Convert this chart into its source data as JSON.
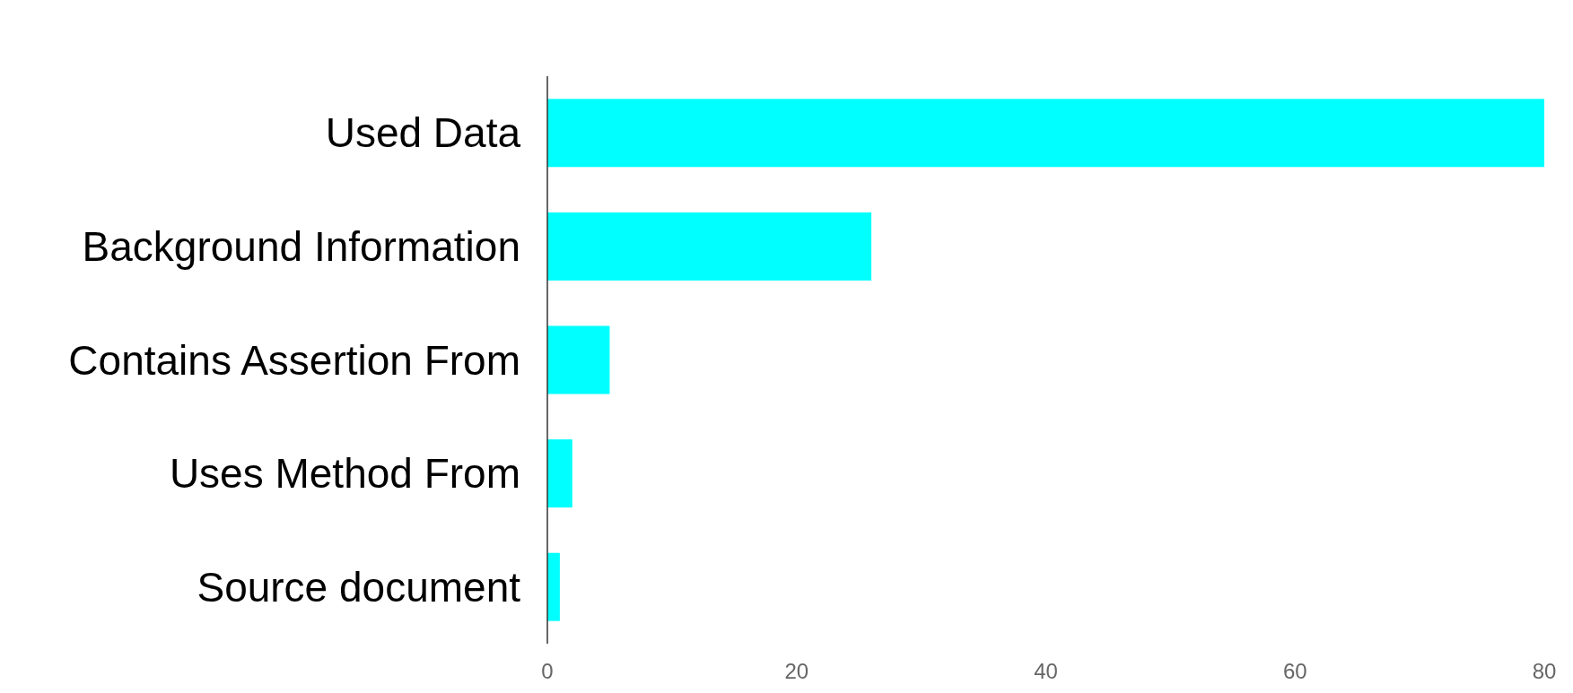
{
  "chart_data": {
    "type": "bar",
    "orientation": "horizontal",
    "categories": [
      "Used Data",
      "Background Information",
      "Contains Assertion From",
      "Uses Method From",
      "Source document"
    ],
    "values": [
      80,
      26,
      5,
      2,
      1
    ],
    "color": "#00ffff",
    "xlim": [
      0,
      80
    ],
    "xticks": [
      0,
      20,
      40,
      60,
      80
    ],
    "grid": false
  }
}
